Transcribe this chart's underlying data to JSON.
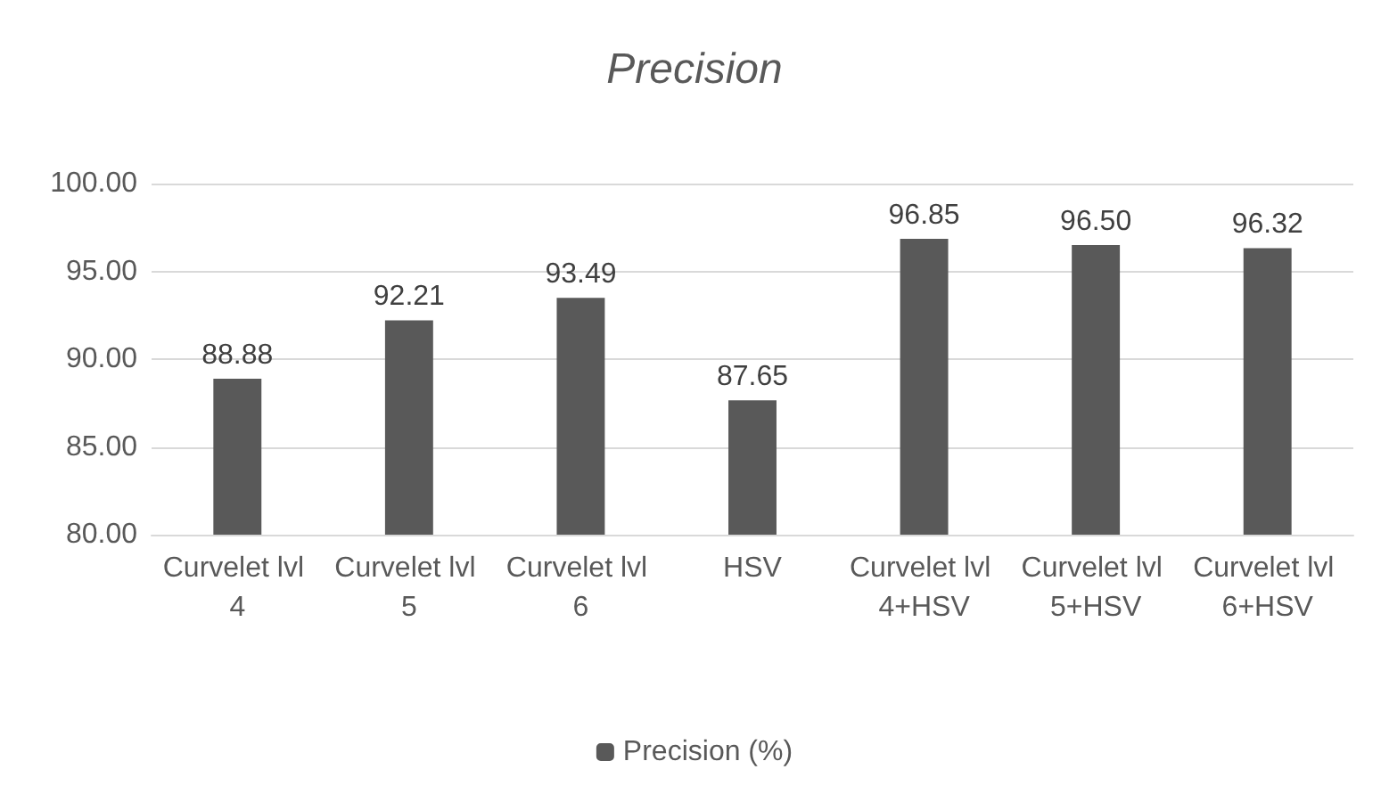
{
  "chart_data": {
    "type": "bar",
    "title": "Precision",
    "categories": [
      "Curvelet lvl 4",
      "Curvelet lvl 5",
      "Curvelet lvl 6",
      "HSV",
      "Curvelet lvl 4+HSV",
      "Curvelet lvl 5+HSV",
      "Curvelet lvl 6+HSV"
    ],
    "series": [
      {
        "name": "Precision (%)",
        "color": "#595959",
        "values": [
          88.88,
          92.21,
          93.49,
          87.65,
          96.85,
          96.5,
          96.32
        ],
        "value_labels": [
          "88.88",
          "92.21",
          "93.49",
          "87.65",
          "96.85",
          "96.50",
          "96.32"
        ]
      }
    ],
    "ylim": [
      80,
      100
    ],
    "yticks": [
      {
        "value": 80,
        "label": "80.00"
      },
      {
        "value": 85,
        "label": "85.00"
      },
      {
        "value": 90,
        "label": "90.00"
      },
      {
        "value": 95,
        "label": "95.00"
      },
      {
        "value": 100,
        "label": "100.00"
      }
    ],
    "grid": "y",
    "legend": "bottom"
  }
}
